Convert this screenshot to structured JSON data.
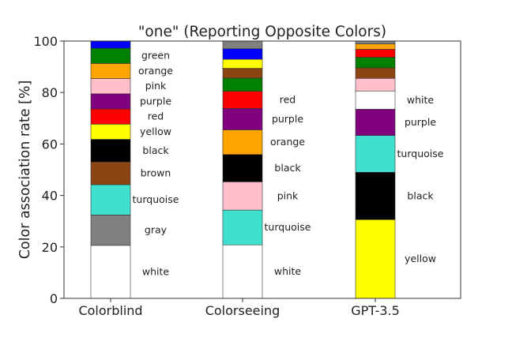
{
  "chart_data": {
    "type": "bar",
    "stacked": true,
    "title": "\"one\" (Reporting Opposite Colors)",
    "xlabel": "",
    "ylabel": "Color association rate [%]",
    "ylim": [
      0,
      100
    ],
    "yticks": [
      0,
      20,
      40,
      60,
      80,
      100
    ],
    "grid": false,
    "categories": [
      "Colorblind",
      "Colorseeing",
      "GPT-3.5"
    ],
    "bars": [
      {
        "category": "Colorblind",
        "segments": [
          {
            "label": "white",
            "value": 20.6,
            "color": "#ffffff",
            "show_label": true
          },
          {
            "label": "gray",
            "value": 11.8,
            "color": "#808080",
            "show_label": true
          },
          {
            "label": "turquoise",
            "value": 11.8,
            "color": "#40e0d0",
            "show_label": true
          },
          {
            "label": "brown",
            "value": 8.8,
            "color": "#8b4513",
            "show_label": true
          },
          {
            "label": "black",
            "value": 8.8,
            "color": "#000000",
            "show_label": true
          },
          {
            "label": "yellow",
            "value": 5.9,
            "color": "#ffff00",
            "show_label": true
          },
          {
            "label": "red",
            "value": 5.9,
            "color": "#ff0000",
            "show_label": true
          },
          {
            "label": "purple",
            "value": 5.9,
            "color": "#800080",
            "show_label": true
          },
          {
            "label": "pink",
            "value": 5.9,
            "color": "#ffc0cb",
            "show_label": true
          },
          {
            "label": "orange",
            "value": 5.9,
            "color": "#ffa500",
            "show_label": true
          },
          {
            "label": "green",
            "value": 5.9,
            "color": "#008000",
            "show_label": true
          },
          {
            "label": "",
            "value": 2.8,
            "color": "#0000ff",
            "show_label": false
          }
        ]
      },
      {
        "category": "Colorseeing",
        "segments": [
          {
            "label": "white",
            "value": 20.8,
            "color": "#ffffff",
            "show_label": true
          },
          {
            "label": "turquoise",
            "value": 13.5,
            "color": "#40e0d0",
            "show_label": true
          },
          {
            "label": "pink",
            "value": 11.0,
            "color": "#ffc0cb",
            "show_label": true
          },
          {
            "label": "black",
            "value": 10.6,
            "color": "#000000",
            "show_label": true
          },
          {
            "label": "orange",
            "value": 9.6,
            "color": "#ffa500",
            "show_label": true
          },
          {
            "label": "purple",
            "value": 8.3,
            "color": "#800080",
            "show_label": true
          },
          {
            "label": "red",
            "value": 6.7,
            "color": "#ff0000",
            "show_label": true
          },
          {
            "label": "",
            "value": 5.1,
            "color": "#008000",
            "show_label": false
          },
          {
            "label": "",
            "value": 3.8,
            "color": "#8b4513",
            "show_label": false
          },
          {
            "label": "",
            "value": 3.5,
            "color": "#ffff00",
            "show_label": false
          },
          {
            "label": "",
            "value": 4.1,
            "color": "#0000ff",
            "show_label": false
          },
          {
            "label": "",
            "value": 3.0,
            "color": "#808080",
            "show_label": false
          }
        ]
      },
      {
        "category": "GPT-3.5",
        "segments": [
          {
            "label": "yellow",
            "value": 30.6,
            "color": "#ffff00",
            "show_label": true
          },
          {
            "label": "black",
            "value": 18.4,
            "color": "#000000",
            "show_label": true
          },
          {
            "label": "turquoise",
            "value": 14.3,
            "color": "#40e0d0",
            "show_label": true
          },
          {
            "label": "purple",
            "value": 10.2,
            "color": "#800080",
            "show_label": true
          },
          {
            "label": "white",
            "value": 7.1,
            "color": "#ffffff",
            "show_label": true
          },
          {
            "label": "",
            "value": 4.9,
            "color": "#ffc0cb",
            "show_label": false
          },
          {
            "label": "",
            "value": 4.1,
            "color": "#8b4513",
            "show_label": false
          },
          {
            "label": "",
            "value": 4.1,
            "color": "#008000",
            "show_label": false
          },
          {
            "label": "",
            "value": 3.1,
            "color": "#ff0000",
            "show_label": false
          },
          {
            "label": "",
            "value": 2.1,
            "color": "#ffa500",
            "show_label": false
          },
          {
            "label": "",
            "value": 1.1,
            "color": "#808080",
            "show_label": false
          }
        ]
      }
    ]
  }
}
